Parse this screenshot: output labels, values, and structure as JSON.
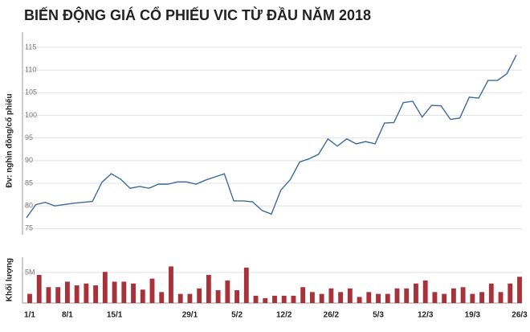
{
  "title": "BIẾN ĐỘNG GIÁ CỔ PHIẾU VIC TỪ ĐẦU NĂM 2018",
  "chart_data": [
    {
      "type": "line",
      "ylabel": "Đv: nghìn đồng/cổ phiếu",
      "color": "#3d6a9c",
      "values": [
        77.4,
        80.3,
        80.8,
        80.0,
        80.3,
        80.6,
        80.8,
        81.0,
        85.2,
        87.1,
        85.9,
        83.9,
        84.3,
        83.9,
        84.8,
        84.8,
        85.3,
        85.3,
        84.8,
        85.7,
        86.4,
        87.1,
        81.1,
        81.1,
        80.9,
        79.0,
        78.2,
        83.5,
        85.8,
        89.7,
        90.4,
        91.4,
        94.8,
        93.2,
        94.8,
        93.7,
        94.2,
        93.7,
        98.3,
        98.4,
        102.8,
        103.1,
        99.6,
        102.2,
        102.1,
        99.1,
        99.4,
        104.0,
        103.8,
        107.7,
        107.7,
        109.2,
        113.3
      ],
      "ylim": [
        74,
        118
      ],
      "yticks": [
        75,
        80,
        85,
        90,
        95,
        100,
        105,
        110,
        115
      ],
      "grid": true
    },
    {
      "type": "bar",
      "ylabel": "Khối lượng",
      "color": "#a8323a",
      "categories": [
        "1/1",
        null,
        null,
        null,
        "8/1",
        null,
        null,
        null,
        null,
        "15/1",
        null,
        null,
        null,
        null,
        null,
        null,
        null,
        "29/1",
        null,
        null,
        null,
        null,
        "5/2",
        null,
        null,
        null,
        null,
        "12/2",
        null,
        null,
        null,
        null,
        "26/2",
        null,
        null,
        null,
        null,
        "5/3",
        null,
        null,
        null,
        null,
        "12/3",
        null,
        null,
        null,
        null,
        "19/3",
        null,
        null,
        null,
        null,
        "26/3"
      ],
      "values": [
        1500000,
        4600000,
        2600000,
        2600000,
        3500000,
        2900000,
        3200000,
        2900000,
        5100000,
        3500000,
        3500000,
        3200000,
        2200000,
        4000000,
        1800000,
        6000000,
        1500000,
        1500000,
        2400000,
        4600000,
        2100000,
        3700000,
        2100000,
        5800000,
        1200000,
        800000,
        1200000,
        1200000,
        1200000,
        2600000,
        1800000,
        1500000,
        2400000,
        1800000,
        2400000,
        1000000,
        1800000,
        1500000,
        1500000,
        2400000,
        2400000,
        3200000,
        3700000,
        1800000,
        1500000,
        2400000,
        2600000,
        1500000,
        1800000,
        3200000,
        1800000,
        3200000,
        4300000
      ],
      "ylim": [
        0,
        7500000
      ],
      "yticks": [
        {
          "value": 5000000,
          "label": "5M"
        }
      ],
      "grid": true
    }
  ]
}
